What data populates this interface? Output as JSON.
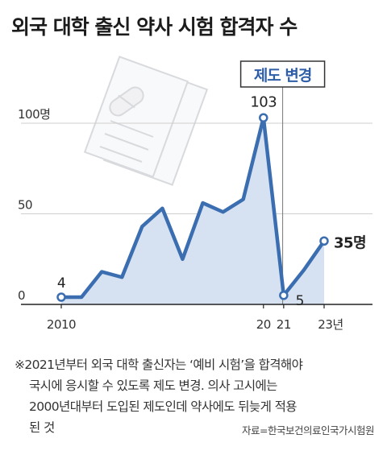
{
  "title": "외국 대학 출신 약사 시험 합격자 수",
  "annotation": {
    "label": "제도 변경",
    "color": "#2f5ea8"
  },
  "colors": {
    "line": "#3b6eb0",
    "area": "#d6e2f1",
    "point_fill": "#ffffff"
  },
  "chart_data": {
    "type": "area",
    "title": "외국 대학 출신 약사 시험 합격자 수",
    "x": [
      2010,
      2011,
      2012,
      2013,
      2014,
      2015,
      2016,
      2017,
      2018,
      2019,
      2020,
      2021,
      2022,
      2023
    ],
    "values": [
      4,
      4,
      18,
      15,
      43,
      53,
      25,
      56,
      51,
      58,
      103,
      5,
      19,
      35
    ],
    "ylim": [
      0,
      115
    ],
    "ytick_values": [
      0,
      50,
      100
    ],
    "ytick_labels": [
      "0",
      "50",
      "100명"
    ],
    "xtick_values": [
      2010,
      2020,
      2021,
      2023
    ],
    "xtick_labels": [
      "2010",
      "20",
      "21",
      "23년"
    ],
    "data_labels": [
      {
        "x": 2010,
        "text": "4"
      },
      {
        "x": 2020,
        "text": "103"
      },
      {
        "x": 2021,
        "text": "5"
      },
      {
        "x": 2023,
        "text": "35명"
      }
    ],
    "marked_x": [
      2010,
      2020,
      2021,
      2023
    ],
    "grid": true
  },
  "note": {
    "lines": [
      "※2021년부터 외국 대학 출신자는 ‘예비 시험’을 합격해야",
      "국시에 응시할 수 있도록 제도 변경. 의사 고시에는",
      "2000년대부터 도입된 제도인데 약사에도 뒤늦게 적용",
      "된 것"
    ]
  },
  "source": "자료=한국보건의료인국가시험원"
}
